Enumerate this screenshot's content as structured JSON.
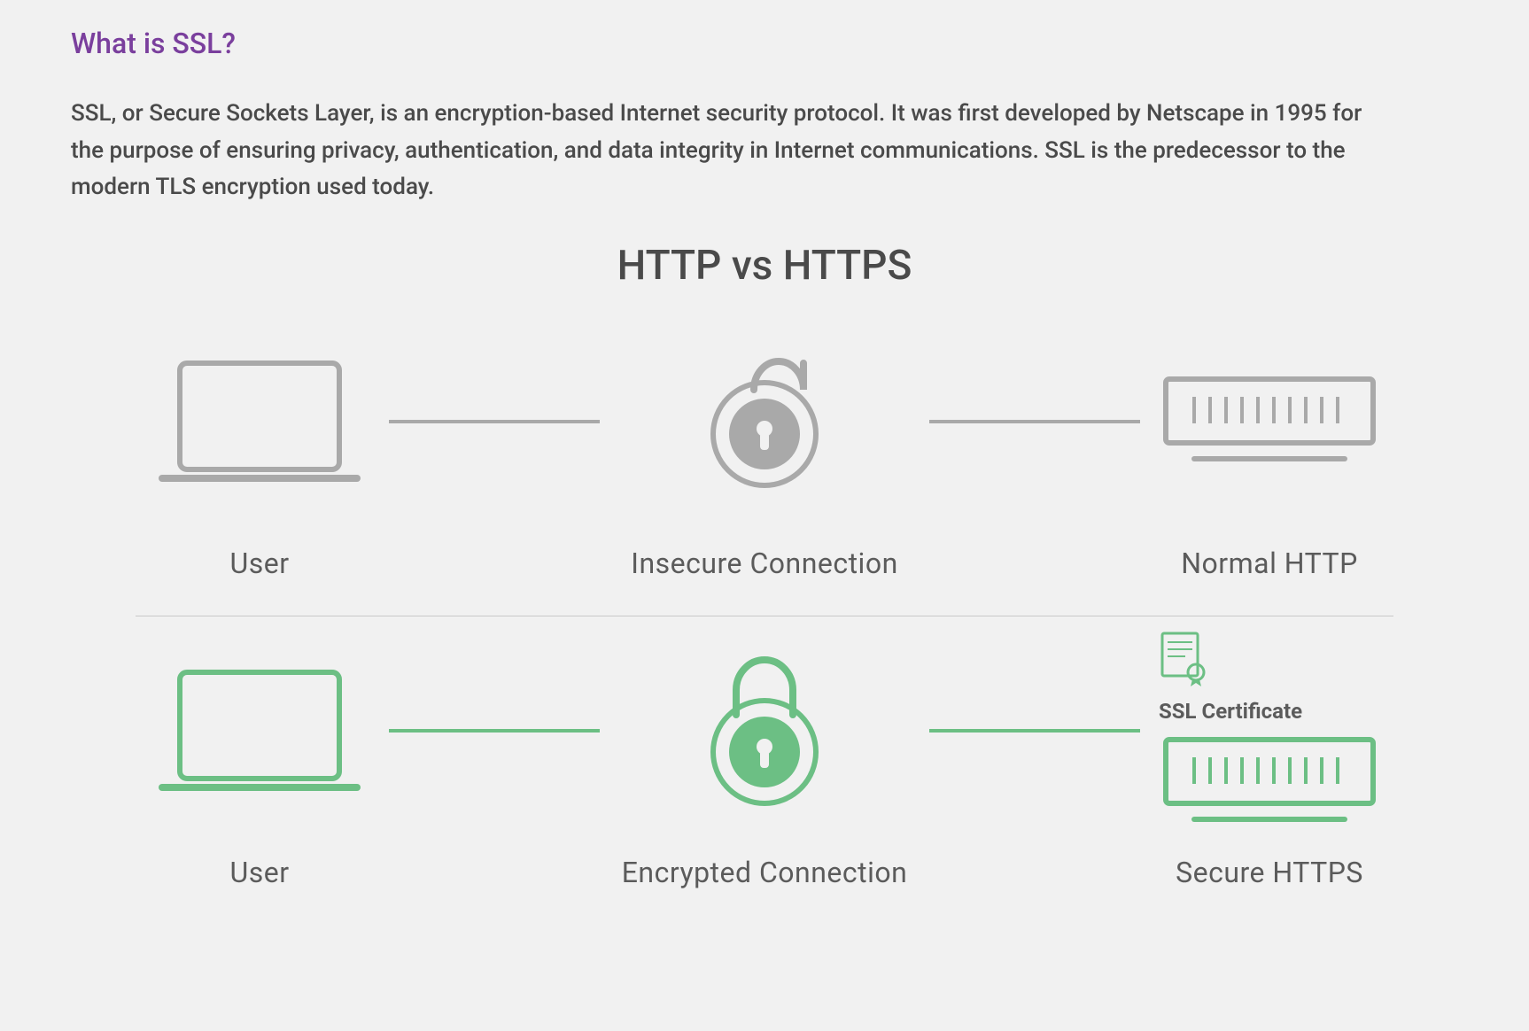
{
  "heading": {
    "text": "What is SSL?",
    "color": "#7a3f9d"
  },
  "body": {
    "text": "SSL, or Secure Sockets Layer, is an encryption-based Internet security protocol. It was first developed by Netscape in 1995 for the purpose of ensuring privacy, authentication, and data integrity in Internet communications. SSL is the predecessor to the modern TLS encryption used today.",
    "color": "#4a4a4a"
  },
  "diagram": {
    "title": "HTTP vs HTTPS",
    "title_color": "#4a4a4a",
    "background": "#f1f1f1",
    "rows": [
      {
        "user_label": "User",
        "middle_label": "Insecure Connection",
        "server_label": "Normal HTTP",
        "cert_label": null,
        "lock_open": true,
        "stroke_color": "#a9a9a9",
        "fill_color": "#a9a9a9",
        "text_color": "#5b5b5b",
        "connector_color": "#a9a9a9",
        "stroke_width": 6
      },
      {
        "user_label": "User",
        "middle_label": "Encrypted Connection",
        "server_label": "Secure HTTPS",
        "cert_label": "SSL Certificate",
        "lock_open": false,
        "stroke_color": "#6cbf84",
        "fill_color": "#6cbf84",
        "text_color": "#5b5b5b",
        "connector_color": "#6cbf84",
        "stroke_width": 6
      }
    ]
  },
  "typography": {
    "heading_fontsize": 32,
    "body_fontsize": 26,
    "diagram_title_fontsize": 46,
    "caption_fontsize": 32,
    "cert_label_fontsize": 24
  }
}
